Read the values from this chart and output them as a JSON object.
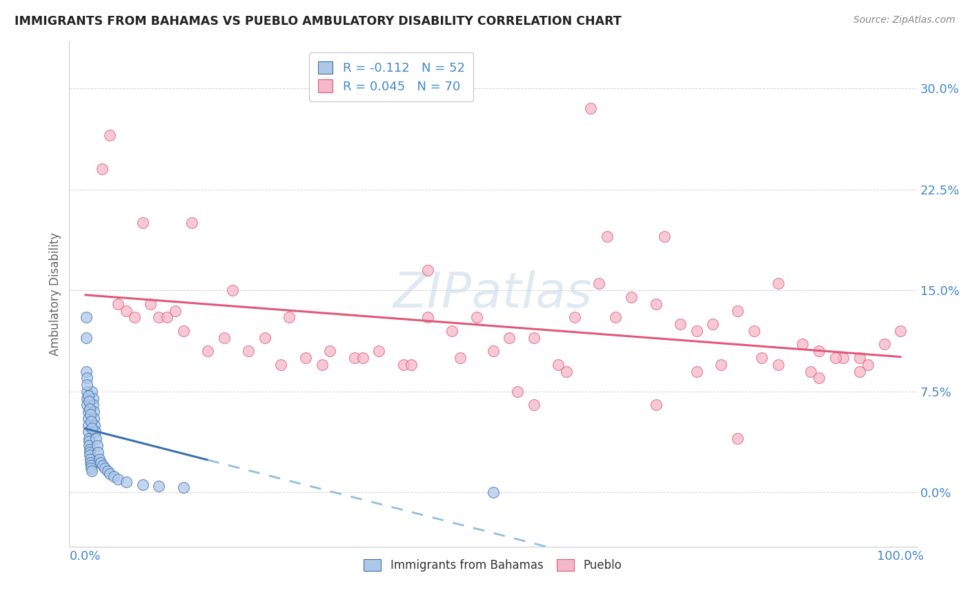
{
  "title": "IMMIGRANTS FROM BAHAMAS VS PUEBLO AMBULATORY DISABILITY CORRELATION CHART",
  "source": "Source: ZipAtlas.com",
  "ylabel": "Ambulatory Disability",
  "xlabel": "",
  "xlim": [
    -0.02,
    1.02
  ],
  "ylim": [
    -0.04,
    0.335
  ],
  "ytick_vals": [
    0.0,
    0.075,
    0.15,
    0.225,
    0.3
  ],
  "ytick_labels": [
    "0.0%",
    "7.5%",
    "15.0%",
    "22.5%",
    "30.0%"
  ],
  "xtick_vals": [
    0.0,
    1.0
  ],
  "xtick_labels": [
    "0.0%",
    "100.0%"
  ],
  "legend_line1": "R = -0.112   N = 52",
  "legend_line2": "R = 0.045   N = 70",
  "color_blue": "#aec8e8",
  "color_pink": "#f4b8c8",
  "line_blue_solid": "#3a6fb0",
  "line_blue_dashed": "#90bedd",
  "line_pink": "#e05878",
  "background_color": "#ffffff",
  "grid_color": "#cccccc",
  "watermark_text": "ZIPatlas",
  "tick_color": "#4488cc",
  "blue_x": [
    0.001,
    0.001,
    0.002,
    0.002,
    0.002,
    0.002,
    0.003,
    0.003,
    0.003,
    0.003,
    0.004,
    0.004,
    0.004,
    0.005,
    0.005,
    0.005,
    0.006,
    0.006,
    0.007,
    0.007,
    0.008,
    0.008,
    0.009,
    0.009,
    0.01,
    0.01,
    0.011,
    0.012,
    0.013,
    0.014,
    0.015,
    0.017,
    0.019,
    0.021,
    0.024,
    0.027,
    0.03,
    0.035,
    0.04,
    0.05,
    0.07,
    0.09,
    0.12,
    0.001,
    0.002,
    0.003,
    0.004,
    0.005,
    0.006,
    0.007,
    0.008,
    0.5
  ],
  "blue_y": [
    0.115,
    0.09,
    0.085,
    0.075,
    0.07,
    0.065,
    0.06,
    0.055,
    0.05,
    0.045,
    0.04,
    0.038,
    0.035,
    0.032,
    0.03,
    0.028,
    0.025,
    0.022,
    0.02,
    0.018,
    0.016,
    0.075,
    0.07,
    0.065,
    0.06,
    0.055,
    0.05,
    0.045,
    0.04,
    0.035,
    0.03,
    0.025,
    0.022,
    0.02,
    0.018,
    0.016,
    0.014,
    0.012,
    0.01,
    0.008,
    0.006,
    0.005,
    0.004,
    0.13,
    0.08,
    0.072,
    0.068,
    0.062,
    0.058,
    0.053,
    0.048,
    0.0
  ],
  "pink_x": [
    0.02,
    0.04,
    0.05,
    0.06,
    0.08,
    0.09,
    0.1,
    0.12,
    0.15,
    0.17,
    0.2,
    0.22,
    0.25,
    0.27,
    0.3,
    0.33,
    0.36,
    0.39,
    0.42,
    0.45,
    0.48,
    0.5,
    0.52,
    0.55,
    0.58,
    0.6,
    0.63,
    0.65,
    0.67,
    0.7,
    0.73,
    0.75,
    0.78,
    0.8,
    0.82,
    0.85,
    0.88,
    0.9,
    0.93,
    0.95,
    0.98,
    1.0,
    0.03,
    0.07,
    0.11,
    0.13,
    0.18,
    0.24,
    0.29,
    0.34,
    0.4,
    0.46,
    0.53,
    0.59,
    0.64,
    0.71,
    0.77,
    0.83,
    0.89,
    0.92,
    0.96,
    0.62,
    0.42,
    0.75,
    0.85,
    0.9,
    0.95,
    0.7,
    0.8,
    0.55
  ],
  "pink_y": [
    0.24,
    0.14,
    0.135,
    0.13,
    0.14,
    0.13,
    0.13,
    0.12,
    0.105,
    0.115,
    0.105,
    0.115,
    0.13,
    0.1,
    0.105,
    0.1,
    0.105,
    0.095,
    0.13,
    0.12,
    0.13,
    0.105,
    0.115,
    0.115,
    0.095,
    0.13,
    0.155,
    0.13,
    0.145,
    0.14,
    0.125,
    0.12,
    0.095,
    0.135,
    0.12,
    0.095,
    0.11,
    0.105,
    0.1,
    0.1,
    0.11,
    0.12,
    0.265,
    0.2,
    0.135,
    0.2,
    0.15,
    0.095,
    0.095,
    0.1,
    0.095,
    0.1,
    0.075,
    0.09,
    0.19,
    0.19,
    0.125,
    0.1,
    0.09,
    0.1,
    0.095,
    0.285,
    0.165,
    0.09,
    0.155,
    0.085,
    0.09,
    0.065,
    0.04,
    0.065
  ]
}
